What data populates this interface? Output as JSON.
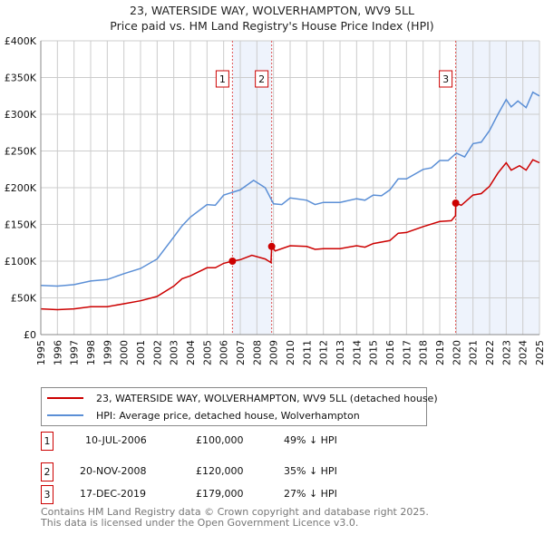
{
  "chart_data": {
    "type": "line",
    "title": "23, WATERSIDE WAY, WOLVERHAMPTON, WV9 5LL",
    "subtitle": "Price paid vs. HM Land Registry's House Price Index (HPI)",
    "xlim": [
      1995,
      2025
    ],
    "ylim": [
      0,
      400000
    ],
    "yticks": [
      0,
      50000,
      100000,
      150000,
      200000,
      250000,
      300000,
      350000,
      400000
    ],
    "ytick_labels": [
      "£0",
      "£50K",
      "£100K",
      "£150K",
      "£200K",
      "£250K",
      "£300K",
      "£350K",
      "£400K"
    ],
    "xticks": [
      "1995",
      "1996",
      "1997",
      "1998",
      "1999",
      "2000",
      "2001",
      "2002",
      "2003",
      "2004",
      "2005",
      "2006",
      "2007",
      "2008",
      "2009",
      "2010",
      "2011",
      "2012",
      "2013",
      "2014",
      "2015",
      "2016",
      "2017",
      "2018",
      "2019",
      "2020",
      "2021",
      "2022",
      "2023",
      "2024",
      "2025"
    ],
    "grid": true,
    "series": [
      {
        "name": "23, WATERSIDE WAY, WOLVERHAMPTON, WV9 5LL (detached house)",
        "color": "#cc0000",
        "x": [
          1995,
          1996,
          1997,
          1998,
          1999,
          2000,
          2001,
          2002,
          2003,
          2003.5,
          2004,
          2005,
          2005.5,
          2006,
          2006.53,
          2007,
          2007.7,
          2008.5,
          2008.85,
          2008.89,
          2009.1,
          2010,
          2011,
          2011.5,
          2012,
          2013,
          2014,
          2014.5,
          2015,
          2016,
          2016.5,
          2017,
          2018,
          2019,
          2019.7,
          2019.95,
          2019.96,
          2020.3,
          2021,
          2021.5,
          2022,
          2022.5,
          2023,
          2023.3,
          2023.8,
          2024.2,
          2024.6,
          2025
        ],
        "y": [
          35,
          34,
          35,
          38,
          38,
          42,
          46,
          52,
          66,
          76,
          80,
          91,
          91,
          97,
          100,
          102,
          108,
          103,
          98,
          120,
          114,
          121,
          120,
          116,
          117,
          117,
          121,
          119,
          124,
          128,
          138,
          139,
          147,
          154,
          155,
          162,
          179,
          176,
          190,
          192,
          202,
          220,
          234,
          224,
          230,
          224,
          238,
          234
        ]
      },
      {
        "name": "HPI: Average price, detached house, Wolverhampton",
        "color": "#5b8fd6",
        "x": [
          1995,
          1996,
          1997,
          1998,
          1999,
          2000,
          2001,
          2002,
          2003,
          2003.5,
          2004,
          2005,
          2005.5,
          2006,
          2007,
          2007.8,
          2008.5,
          2009,
          2009.5,
          2010,
          2011,
          2011.5,
          2012,
          2013,
          2014,
          2014.5,
          2015,
          2015.5,
          2016,
          2016.5,
          2017,
          2018,
          2018.5,
          2019,
          2019.5,
          2020,
          2020.5,
          2021,
          2021.5,
          2022,
          2022.5,
          2023,
          2023.3,
          2023.7,
          2024.2,
          2024.6,
          2025
        ],
        "y": [
          67,
          66,
          68,
          73,
          75,
          83,
          90,
          103,
          133,
          148,
          160,
          177,
          176,
          190,
          197,
          210,
          200,
          178,
          177,
          186,
          183,
          177,
          180,
          180,
          185,
          183,
          190,
          189,
          197,
          212,
          212,
          225,
          227,
          237,
          237,
          247,
          242,
          260,
          262,
          278,
          300,
          320,
          310,
          318,
          309,
          330,
          325
        ]
      }
    ],
    "y_units": "£ thousands",
    "sales": [
      {
        "n": "1",
        "x": 2006.53,
        "date": "10-JUL-2006",
        "price": "£100,000",
        "value": 100,
        "hpi": "49% ↓ HPI"
      },
      {
        "n": "2",
        "x": 2008.89,
        "date": "20-NOV-2008",
        "price": "£120,000",
        "value": 120,
        "hpi": "35% ↓ HPI"
      },
      {
        "n": "3",
        "x": 2019.96,
        "date": "17-DEC-2019",
        "price": "£179,000",
        "value": 179,
        "hpi": "27% ↓ HPI"
      }
    ],
    "legend_placement": "bottom"
  },
  "footer": [
    "Contains HM Land Registry data © Crown copyright and database right 2025.",
    "This data is licensed under the Open Government Licence v3.0."
  ]
}
